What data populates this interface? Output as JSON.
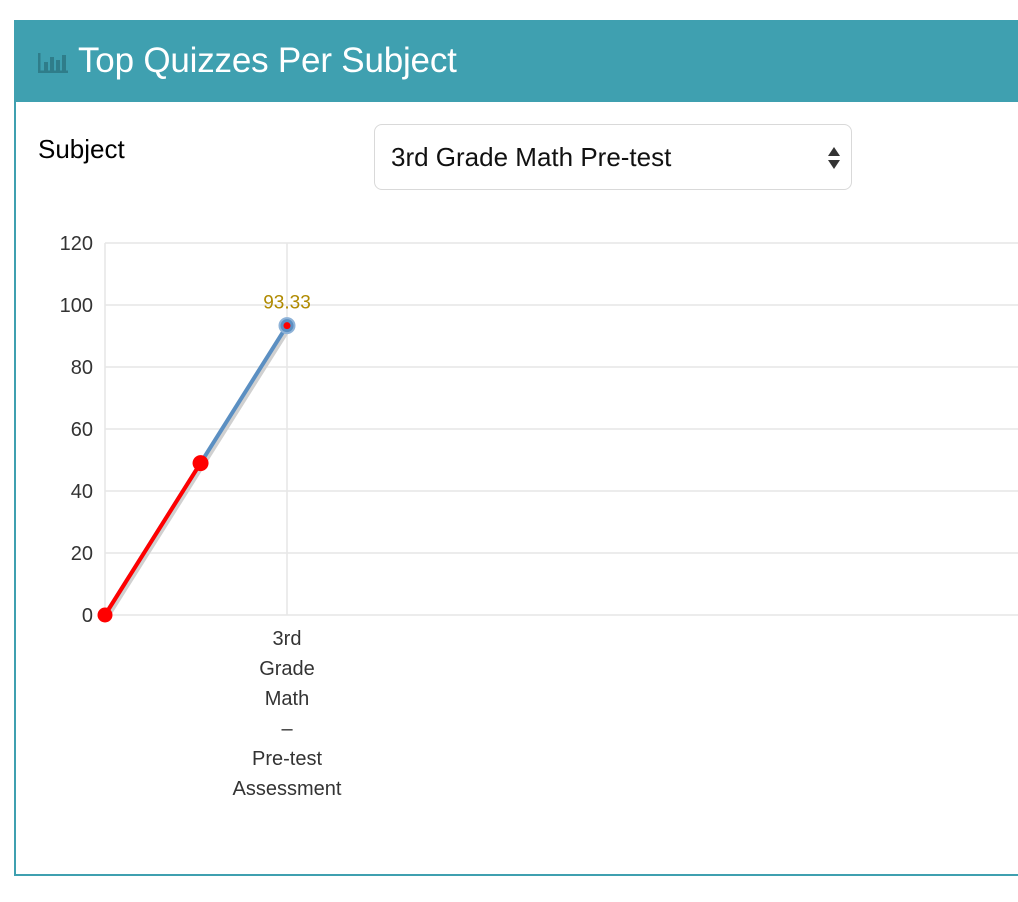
{
  "panel": {
    "title": "Top Quizzes Per Subject",
    "header_color": "#3fa0b0",
    "icon": "bar-chart-icon"
  },
  "filter": {
    "label": "Subject",
    "selected": "3rd Grade Math Pre-test",
    "icon": "select-arrows-icon"
  },
  "chart_data": {
    "type": "line",
    "ylim": [
      0,
      120
    ],
    "yticks": [
      0,
      20,
      40,
      60,
      80,
      100,
      120
    ],
    "categories": [
      "3rd Grade Math – Pre-test Assessment"
    ],
    "category_label_lines": [
      "3rd",
      "Grade",
      "Math",
      "–",
      "Pre-test",
      "Assessment"
    ],
    "series": [
      {
        "values": [
          93.33
        ],
        "color": "#5b8fc2"
      }
    ],
    "data_labels": [
      "93.33"
    ],
    "data_label_color": "#b08a00",
    "highlight_color": "#ff0000"
  }
}
